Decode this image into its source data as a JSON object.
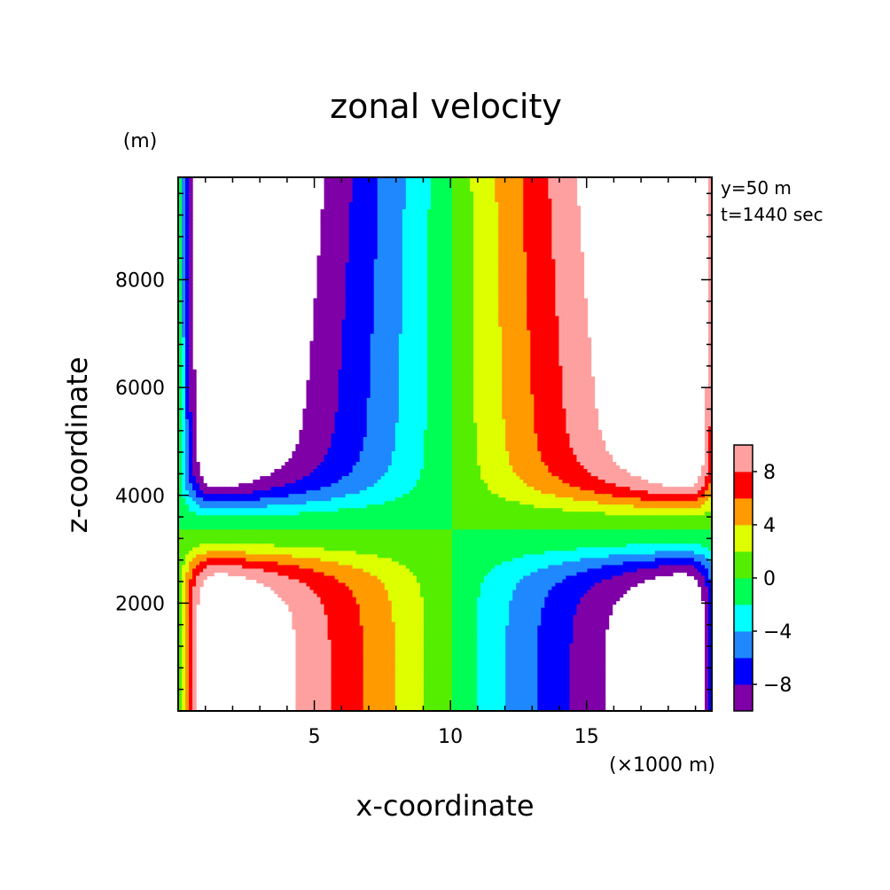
{
  "chart_data": {
    "type": "contour",
    "title": "zonal velocity",
    "xlabel": "x-coordinate",
    "ylabel": "z-coordinate",
    "x_unit": "(×1000 m)",
    "y_unit": "(m)",
    "info": [
      "y=50 m",
      "t=1440 sec"
    ],
    "xlim": [
      0,
      19.6
    ],
    "ylim": [
      0,
      9900
    ],
    "x_ticks": [
      5,
      10,
      15
    ],
    "y_ticks": [
      2000,
      4000,
      6000,
      8000
    ],
    "levels": [
      -10,
      -8,
      -6,
      -4,
      -2,
      0,
      2,
      4,
      6,
      8,
      10
    ],
    "colorbar_labels": [
      8,
      4,
      0,
      -4,
      -8
    ],
    "colors": [
      "#7f00a6",
      "#0000ff",
      "#1f88ff",
      "#00ffff",
      "#00ff55",
      "#55ee00",
      "#ddff00",
      "#ff9a00",
      "#ff0000",
      "#ffa0a0"
    ],
    "field": {
      "description_of_structure": "antisymmetric about x=10: negative upper-left and lower-right, positive upper-right and lower-left",
      "upper_left": "negative, magnitude up to -10 and beyond",
      "upper_right": "positive, up to 10 and beyond",
      "lower_left": "positive, up to 10 and beyond",
      "lower_right": "negative, down to -10 and beyond"
    }
  }
}
